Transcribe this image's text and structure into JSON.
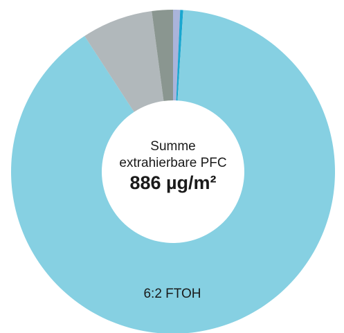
{
  "chart_data": {
    "type": "donut",
    "center_text": [
      "Summe",
      "extrahierbare PFC",
      "886 µg/m²"
    ],
    "categories": [
      null,
      null,
      "6:2 FTOH",
      null,
      null
    ],
    "values": [
      0.7,
      0.3,
      89.8,
      7.1,
      2.1
    ],
    "colors": [
      "#aab4da",
      "#1aa7d0",
      "#86d0e2",
      "#b1b8bb",
      "#8a9690"
    ]
  }
}
